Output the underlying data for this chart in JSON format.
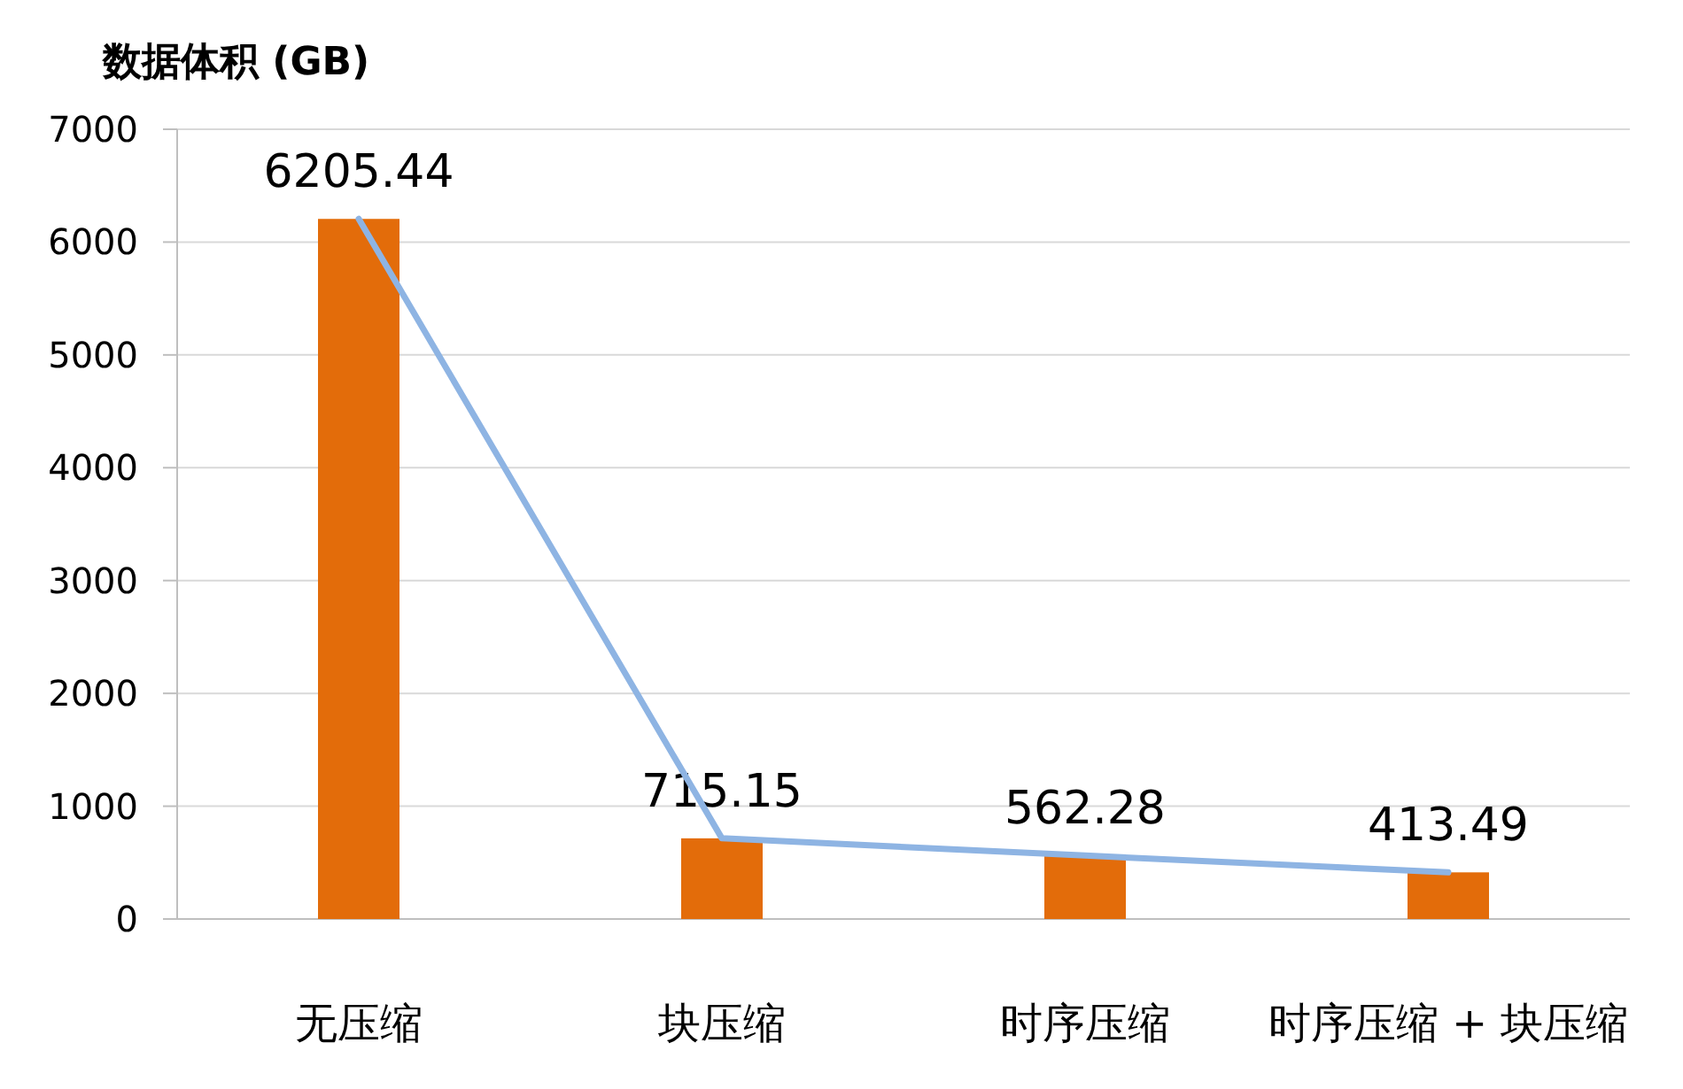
{
  "chart_data": {
    "type": "bar",
    "ylabel": "数据体积 (GB)",
    "categories": [
      "无压缩",
      "块压缩",
      "时序压缩",
      "时序压缩 + 块压缩"
    ],
    "series": [
      {
        "color": "#e36c0a",
        "values": [
          6205.44,
          715.15,
          562.28,
          413.49
        ],
        "value_labels": [
          "6205.44",
          "715.15",
          "562.28",
          "413.49"
        ]
      },
      {
        "type": "line",
        "color": "#8eb4e3",
        "values": [
          6205.44,
          715.15,
          562.28,
          413.49
        ]
      }
    ],
    "ylim": [
      0,
      7000
    ],
    "yticks": [
      0,
      1000,
      2000,
      3000,
      4000,
      5000,
      6000,
      7000
    ],
    "grid": "y"
  }
}
